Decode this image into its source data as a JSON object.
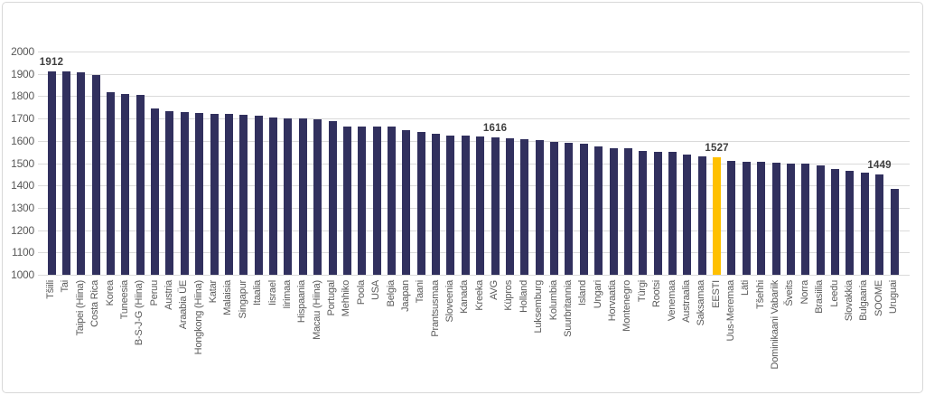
{
  "chart_data": {
    "type": "bar",
    "title": "",
    "xlabel": "",
    "ylabel": "",
    "ylim": [
      1000,
      2000
    ],
    "ytick_step": 100,
    "ytick_labels": [
      "1000",
      "1100",
      "1200",
      "1300",
      "1400",
      "1500",
      "1600",
      "1700",
      "1800",
      "1900",
      "2000"
    ],
    "grid": true,
    "legend": "none",
    "bar_color": "#31305e",
    "highlight_bar_color": "#ffc000",
    "gridline_color": "#dadada",
    "axis_text_color": "#595959",
    "value_label_color": "#3f3f3f",
    "highlight_category": "EESTI",
    "categories": [
      "Tšiili",
      "Tai",
      "Taipei (Hiina)",
      "Costa Rica",
      "Korea",
      "Tuneesia",
      "B-S-J-G (Hiina)",
      "Peruu",
      "Austria",
      "Araabia ÜE",
      "Hongkong (Hiina)",
      "Katar",
      "Malaisia",
      "Singapur",
      "Itaalia",
      "Iisrael",
      "Iirimaa",
      "Hispaania",
      "Macau (Hiina)",
      "Portugal",
      "Mehhiko",
      "Poola",
      "USA",
      "Belgia",
      "Jaapan",
      "Taani",
      "Prantsusmaa",
      "Sloveenia",
      "Kanada",
      "Kreeka",
      "AVG",
      "Küpros",
      "Holland",
      "Luksemburg",
      "Kolumbia",
      "Suurbritannia",
      "Island",
      "Ungari",
      "Horvaatia",
      "Montenegro",
      "Türgi",
      "Rootsi",
      "Venemaa",
      "Austraalia",
      "Saksamaa",
      "EESTI",
      "Uus-Meremaa",
      "Läti",
      "Tšehhi",
      "Dominikaani Vabariik",
      "Šveits",
      "Norra",
      "Brasiilia",
      "Leedu",
      "Slovakkia",
      "Bulgaaria",
      "SOOME",
      "Uruguai"
    ],
    "values": [
      1912,
      1911,
      1907,
      1894,
      1819,
      1809,
      1807,
      1746,
      1733,
      1727,
      1726,
      1722,
      1721,
      1717,
      1714,
      1705,
      1702,
      1701,
      1695,
      1687,
      1666,
      1665,
      1665,
      1664,
      1648,
      1640,
      1631,
      1625,
      1624,
      1620,
      1616,
      1611,
      1606,
      1604,
      1597,
      1590,
      1586,
      1577,
      1569,
      1567,
      1556,
      1551,
      1549,
      1537,
      1531,
      1527,
      1510,
      1507,
      1505,
      1502,
      1499,
      1497,
      1490,
      1474,
      1466,
      1459,
      1449,
      1385
    ],
    "annotations": [
      {
        "category": "Tšiili",
        "text": "1912"
      },
      {
        "category": "AVG",
        "text": "1616"
      },
      {
        "category": "EESTI",
        "text": "1527"
      },
      {
        "category": "SOOME",
        "text": "1449"
      }
    ]
  }
}
